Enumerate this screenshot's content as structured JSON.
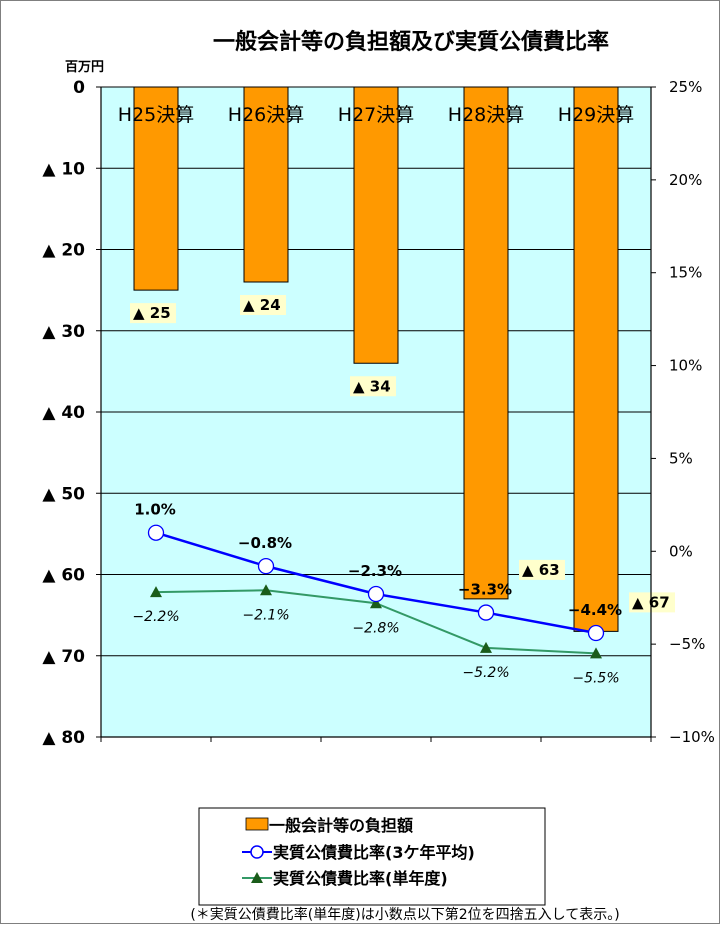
{
  "chart_data": {
    "type": "bar",
    "title": "一般会計等の負担額及び実質公債費比率",
    "left_axis": {
      "unit": "百万円",
      "range": [
        0,
        80
      ],
      "ticks": [
        {
          "v": 0,
          "label": "0"
        },
        {
          "v": 10,
          "label": "▲ 10"
        },
        {
          "v": 20,
          "label": "▲ 20"
        },
        {
          "v": 30,
          "label": "▲ 30"
        },
        {
          "v": 40,
          "label": "▲ 40"
        },
        {
          "v": 50,
          "label": "▲ 50"
        },
        {
          "v": 60,
          "label": "▲ 60"
        },
        {
          "v": 70,
          "label": "▲ 70"
        },
        {
          "v": 80,
          "label": "▲ 80"
        }
      ],
      "inverted": true
    },
    "right_axis": {
      "range": [
        -10,
        25
      ],
      "ticks": [
        {
          "v": 25,
          "label": "25%"
        },
        {
          "v": 20,
          "label": "20%"
        },
        {
          "v": 15,
          "label": "15%"
        },
        {
          "v": 10,
          "label": "10%"
        },
        {
          "v": 5,
          "label": "5%"
        },
        {
          "v": 0,
          "label": "0%"
        },
        {
          "v": -5,
          "label": "−5%"
        },
        {
          "v": -10,
          "label": "−10%"
        }
      ]
    },
    "categories": [
      "H25決算",
      "H26決算",
      "H27決算",
      "H28決算",
      "H29決算"
    ],
    "series": [
      {
        "name": "一般会計等の負担額",
        "kind": "bar",
        "axis": "left",
        "color": "#ff9900",
        "values": [
          25,
          24,
          34,
          63,
          67
        ],
        "labels": [
          "▲ 25",
          "▲ 24",
          "▲ 34",
          "▲ 63",
          "▲ 67"
        ]
      },
      {
        "name": "実質公債費比率(3ケ年平均)",
        "kind": "line",
        "axis": "right",
        "color": "#0000ff",
        "marker": "circle",
        "values": [
          1.0,
          -0.8,
          -2.3,
          -3.3,
          -4.4
        ],
        "labels": [
          "1.0%",
          "−0.8%",
          "−2.3%",
          "−3.3%",
          "−4.4%"
        ]
      },
      {
        "name": "実質公債費比率(単年度)",
        "kind": "line",
        "axis": "right",
        "color": "#339966",
        "marker": "triangle",
        "values": [
          -2.2,
          -2.1,
          -2.8,
          -5.2,
          -5.5
        ],
        "labels": [
          "−2.2%",
          "−2.1%",
          "−2.8%",
          "−5.2%",
          "−5.5%"
        ]
      }
    ],
    "grid": true,
    "plot_background": "#ccffff",
    "legend_position": "bottom",
    "footnote": "(＊実質公債費比率(単年度)は小数点以下第2位を四捨五入して表示。)"
  }
}
